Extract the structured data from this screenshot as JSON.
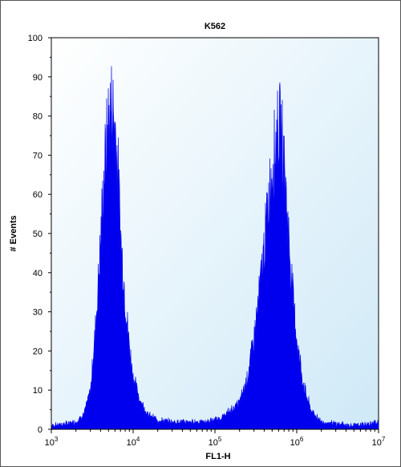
{
  "chart_data": {
    "type": "area",
    "title": "K562",
    "xlabel": "FL1-H",
    "ylabel": "# Events",
    "x_scale": "log",
    "xlim": [
      1000,
      10000000
    ],
    "ylim": [
      0,
      100
    ],
    "yticks": [
      0,
      10,
      20,
      30,
      40,
      50,
      60,
      70,
      80,
      90,
      100
    ],
    "xticks": [
      {
        "value": 1000,
        "base": "10",
        "exp": "3"
      },
      {
        "value": 10000,
        "base": "10",
        "exp": "4"
      },
      {
        "value": 100000,
        "base": "10",
        "exp": "5"
      },
      {
        "value": 1000000,
        "base": "10",
        "exp": "6"
      },
      {
        "value": 10000000,
        "base": "10",
        "exp": "7"
      }
    ],
    "grid": false,
    "colors": {
      "fill": "#0000ee",
      "plot_bg_light": "#ffffff",
      "plot_bg_dark": "#cfe9f7"
    },
    "series": [
      {
        "x": [
          1000,
          1500,
          2000,
          2500,
          3000,
          3500,
          4000,
          4500,
          5000,
          5500,
          6000,
          6500,
          7000,
          8000,
          9000,
          10000,
          12000,
          15000,
          20000,
          30000,
          50000,
          80000,
          120000,
          200000,
          250000,
          300000,
          350000,
          400000,
          450000,
          500000,
          550000,
          600000,
          650000,
          700000,
          750000,
          800000,
          900000,
          1000000,
          1200000,
          1500000,
          2000000,
          3000000,
          5000000,
          8000000,
          10000000
        ],
        "values": [
          1,
          1.5,
          2,
          4,
          10,
          28,
          50,
          70,
          82,
          86,
          80,
          70,
          52,
          34,
          22,
          14,
          8,
          4,
          2.5,
          2,
          2,
          2,
          3,
          7,
          14,
          24,
          36,
          48,
          60,
          70,
          75,
          80,
          78,
          70,
          60,
          50,
          35,
          24,
          12,
          5,
          2,
          1.5,
          1,
          1.5,
          2
        ]
      }
    ]
  }
}
